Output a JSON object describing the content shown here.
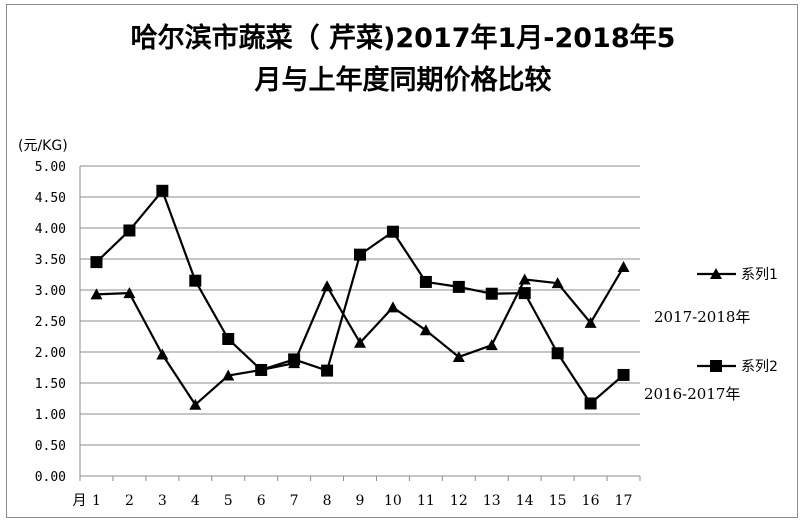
{
  "chart_data": {
    "type": "line",
    "title_line1": "哈尔滨市蔬菜（ 芹菜)2017年1月-2018年5",
    "title_line2": "月与上年度同期价格比较",
    "ylabel": "(元/KG)",
    "ylim": [
      0,
      5
    ],
    "ytick_step": 0.5,
    "yticks": [
      "0.00",
      "0.50",
      "1.00",
      "1.50",
      "2.00",
      "2.50",
      "3.00",
      "3.50",
      "4.00",
      "4.50",
      "5.00"
    ],
    "x_prefix": "月",
    "categories": [
      "1",
      "2",
      "3",
      "4",
      "5",
      "6",
      "7",
      "8",
      "9",
      "10",
      "11",
      "12",
      "13",
      "14",
      "15",
      "16",
      "17"
    ],
    "grid": true,
    "series": [
      {
        "name": "系列1",
        "period": "2017-2018年",
        "marker": "triangle",
        "values": [
          2.93,
          2.95,
          1.96,
          1.15,
          1.62,
          1.71,
          1.82,
          3.06,
          2.15,
          2.72,
          2.35,
          1.92,
          2.11,
          3.17,
          3.11,
          2.47,
          3.37
        ]
      },
      {
        "name": "系列2",
        "period": "2016-2017年",
        "marker": "square",
        "values": [
          3.45,
          3.96,
          4.6,
          3.15,
          2.21,
          1.71,
          1.88,
          1.7,
          3.57,
          3.94,
          3.13,
          3.05,
          2.94,
          2.95,
          1.98,
          1.17,
          1.63
        ]
      }
    ]
  }
}
